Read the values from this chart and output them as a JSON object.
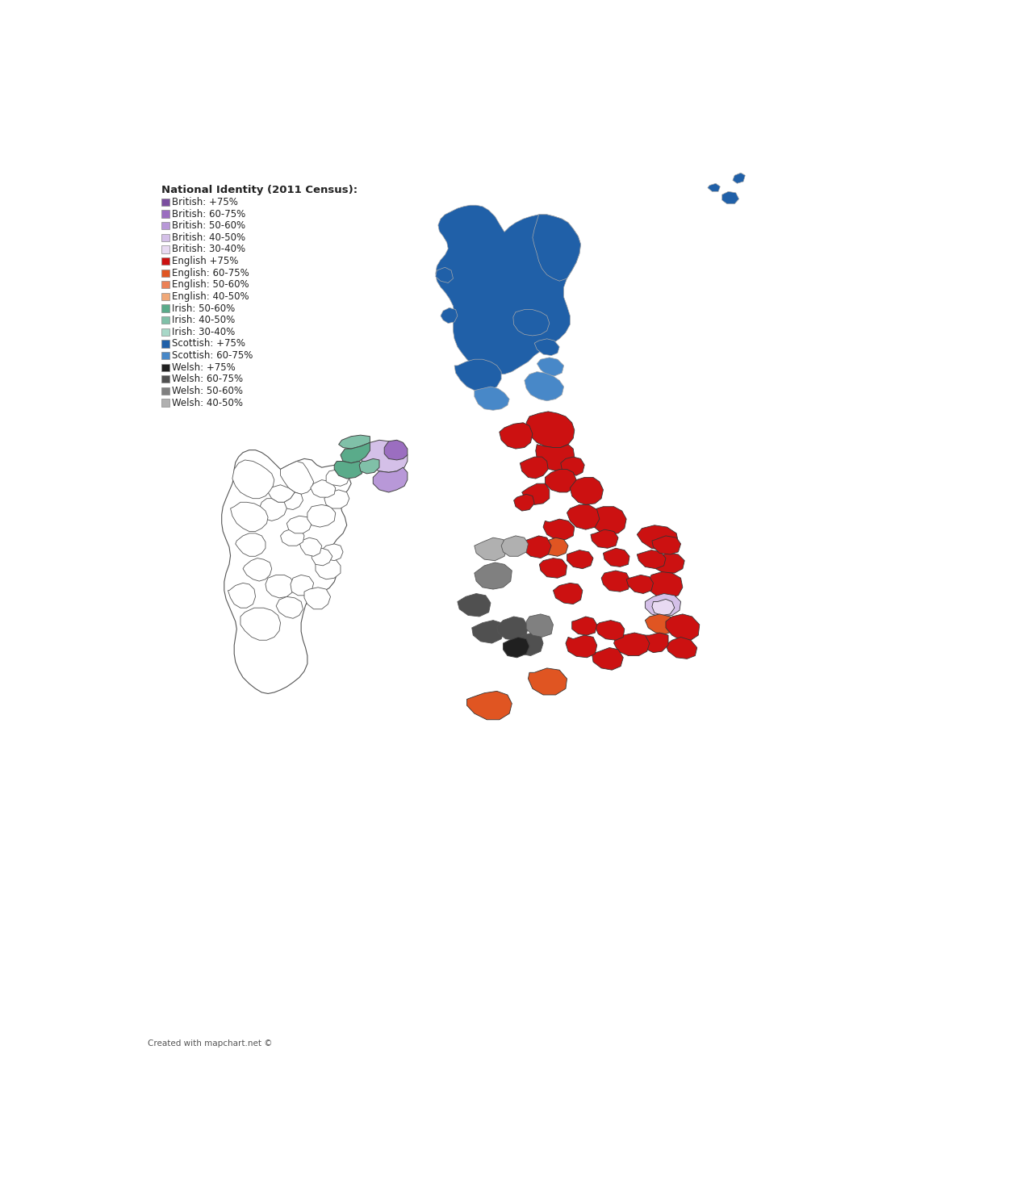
{
  "title": "National Identity (2011 Census):",
  "credit": "Created with mapchart.net ©",
  "legend_entries": [
    {
      "label": "British: +75%",
      "color": "#7b4ea0"
    },
    {
      "label": "British: 60-75%",
      "color": "#9b6ec0"
    },
    {
      "label": "British: 50-60%",
      "color": "#b898d8"
    },
    {
      "label": "British: 40-50%",
      "color": "#d4c0e8"
    },
    {
      "label": "British: 30-40%",
      "color": "#e8daf2"
    },
    {
      "label": "English +75%",
      "color": "#cc1111"
    },
    {
      "label": "English: 60-75%",
      "color": "#e05522"
    },
    {
      "label": "English: 50-60%",
      "color": "#eb8055"
    },
    {
      "label": "English: 40-50%",
      "color": "#f0a878"
    },
    {
      "label": "Irish: 50-60%",
      "color": "#5aab8a"
    },
    {
      "label": "Irish: 40-50%",
      "color": "#80c0a8"
    },
    {
      "label": "Irish: 30-40%",
      "color": "#a8d8c8"
    },
    {
      "label": "Scottish: +75%",
      "color": "#2060a8"
    },
    {
      "label": "Scottish: 60-75%",
      "color": "#4888c8"
    },
    {
      "label": "Welsh: +75%",
      "color": "#202020"
    },
    {
      "label": "Welsh: 60-75%",
      "color": "#505050"
    },
    {
      "label": "Welsh: 50-60%",
      "color": "#808080"
    },
    {
      "label": "Welsh: 40-50%",
      "color": "#b0b0b0"
    }
  ],
  "fig_width": 12.8,
  "fig_height": 14.77,
  "background_color": "#ffffff"
}
